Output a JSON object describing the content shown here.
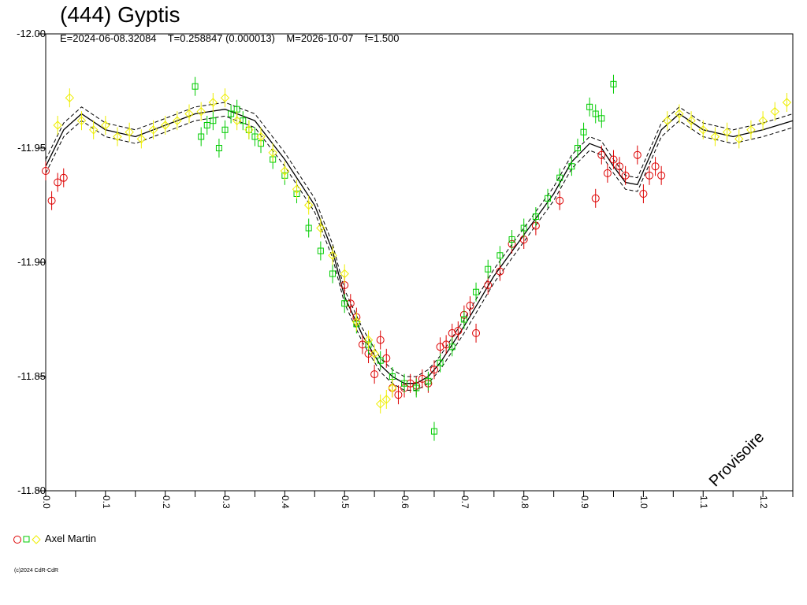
{
  "header": {
    "title": "(444) Gyptis",
    "params": "E=2024-06-08.32084    T=0.258847 (0.000013)    M=2026-10-07    f=1.500"
  },
  "watermark": "Provisoire",
  "legend": {
    "label": "Axel Martin"
  },
  "copyright": "(c)2024 CdR-CdR",
  "colors": {
    "series1": "#dd0000",
    "series2": "#00cc00",
    "series3": "#eeee00",
    "model": "#000000"
  },
  "chart_data": {
    "type": "scatter",
    "xlim": [
      0.0,
      1.25
    ],
    "ylim": [
      -12.0,
      -11.8
    ],
    "y_inverted": true,
    "y_ticks": [
      "-12.00",
      "-11.95",
      "-11.90",
      "-11.85",
      "-11.80"
    ],
    "x_ticks": [
      "0.0",
      "0.1",
      "0.2",
      "0.3",
      "0.4",
      "0.5",
      "0.6",
      "0.7",
      "0.8",
      "0.9",
      "1.0",
      "1.1",
      "1.2"
    ],
    "model_curve": {
      "x": [
        0.0,
        0.03,
        0.06,
        0.1,
        0.15,
        0.2,
        0.25,
        0.3,
        0.35,
        0.4,
        0.45,
        0.48,
        0.5,
        0.53,
        0.56,
        0.58,
        0.6,
        0.62,
        0.64,
        0.66,
        0.7,
        0.75,
        0.8,
        0.85,
        0.88,
        0.91,
        0.93,
        0.95,
        0.97,
        0.99,
        1.0,
        1.03,
        1.06,
        1.1,
        1.15,
        1.2,
        1.25
      ],
      "y": [
        -11.942,
        -11.958,
        -11.965,
        -11.958,
        -11.955,
        -11.96,
        -11.965,
        -11.967,
        -11.962,
        -11.945,
        -11.925,
        -11.905,
        -11.885,
        -11.868,
        -11.855,
        -11.85,
        -11.847,
        -11.847,
        -11.85,
        -11.856,
        -11.872,
        -11.894,
        -11.912,
        -11.93,
        -11.944,
        -11.952,
        -11.95,
        -11.942,
        -11.935,
        -11.934,
        -11.94,
        -11.958,
        -11.965,
        -11.958,
        -11.955,
        -11.958,
        -11.962
      ],
      "envelope": 0.003
    },
    "series": [
      {
        "name": "Axel Martin",
        "marker": "circle",
        "color": "#dd0000",
        "x": [
          0.0,
          0.01,
          0.02,
          0.03,
          0.5,
          0.51,
          0.52,
          0.53,
          0.54,
          0.55,
          0.56,
          0.57,
          0.58,
          0.59,
          0.6,
          0.61,
          0.62,
          0.63,
          0.64,
          0.65,
          0.66,
          0.67,
          0.68,
          0.69,
          0.7,
          0.71,
          0.72,
          0.74,
          0.76,
          0.78,
          0.8,
          0.82,
          0.86,
          0.92,
          0.93,
          0.94,
          0.95,
          0.96,
          0.97,
          0.99,
          1.0,
          1.01,
          1.02,
          1.03
        ],
        "y": [
          -11.94,
          -11.927,
          -11.935,
          -11.937,
          -11.89,
          -11.882,
          -11.876,
          -11.864,
          -11.86,
          -11.851,
          -11.866,
          -11.858,
          -11.845,
          -11.842,
          -11.845,
          -11.847,
          -11.846,
          -11.849,
          -11.847,
          -11.853,
          -11.863,
          -11.864,
          -11.869,
          -11.87,
          -11.877,
          -11.881,
          -11.869,
          -11.89,
          -11.896,
          -11.908,
          -11.91,
          -11.916,
          -11.927,
          -11.928,
          -11.947,
          -11.939,
          -11.945,
          -11.942,
          -11.938,
          -11.947,
          -11.93,
          -11.938,
          -11.942,
          -11.938
        ]
      },
      {
        "name": "Axel Martin",
        "marker": "square",
        "color": "#00cc00",
        "x": [
          0.25,
          0.26,
          0.27,
          0.28,
          0.29,
          0.3,
          0.31,
          0.32,
          0.33,
          0.34,
          0.35,
          0.36,
          0.38,
          0.4,
          0.42,
          0.44,
          0.46,
          0.48,
          0.5,
          0.52,
          0.54,
          0.56,
          0.58,
          0.6,
          0.62,
          0.64,
          0.65,
          0.66,
          0.68,
          0.7,
          0.72,
          0.74,
          0.76,
          0.78,
          0.8,
          0.82,
          0.84,
          0.86,
          0.88,
          0.89,
          0.9,
          0.91,
          0.92,
          0.93,
          0.95
        ],
        "y": [
          -11.977,
          -11.955,
          -11.96,
          -11.962,
          -11.95,
          -11.958,
          -11.965,
          -11.967,
          -11.962,
          -11.958,
          -11.955,
          -11.952,
          -11.945,
          -11.938,
          -11.93,
          -11.915,
          -11.905,
          -11.895,
          -11.882,
          -11.873,
          -11.864,
          -11.857,
          -11.85,
          -11.847,
          -11.845,
          -11.848,
          -11.826,
          -11.856,
          -11.863,
          -11.875,
          -11.887,
          -11.897,
          -11.903,
          -11.91,
          -11.915,
          -11.92,
          -11.928,
          -11.937,
          -11.942,
          -11.95,
          -11.957,
          -11.968,
          -11.965,
          -11.963,
          -11.978
        ]
      },
      {
        "name": "Axel Martin",
        "marker": "diamond",
        "color": "#eeee00",
        "x": [
          0.02,
          0.04,
          0.06,
          0.08,
          0.1,
          0.12,
          0.14,
          0.16,
          0.18,
          0.2,
          0.22,
          0.24,
          0.26,
          0.28,
          0.3,
          0.32,
          0.34,
          0.36,
          0.38,
          0.4,
          0.42,
          0.44,
          0.46,
          0.48,
          0.5,
          0.52,
          0.54,
          0.55,
          0.56,
          0.57,
          0.58,
          1.04,
          1.06,
          1.08,
          1.1,
          1.12,
          1.14,
          1.16,
          1.18,
          1.2,
          1.22,
          1.24
        ],
        "y": [
          -11.96,
          -11.972,
          -11.962,
          -11.958,
          -11.96,
          -11.955,
          -11.957,
          -11.954,
          -11.958,
          -11.96,
          -11.962,
          -11.965,
          -11.966,
          -11.97,
          -11.972,
          -11.962,
          -11.958,
          -11.955,
          -11.948,
          -11.94,
          -11.932,
          -11.925,
          -11.915,
          -11.903,
          -11.895,
          -11.874,
          -11.866,
          -11.86,
          -11.838,
          -11.84,
          -11.845,
          -11.962,
          -11.965,
          -11.962,
          -11.958,
          -11.955,
          -11.957,
          -11.954,
          -11.958,
          -11.962,
          -11.966,
          -11.97
        ]
      }
    ]
  }
}
